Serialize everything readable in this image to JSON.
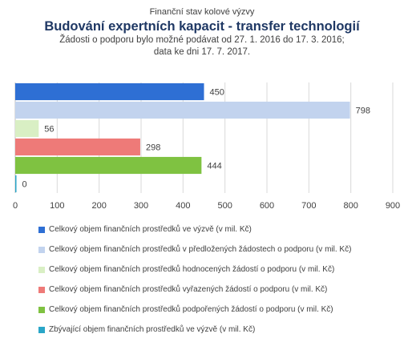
{
  "header": {
    "supertitle": "Finanční stav kolové výzvy",
    "title": "Budování expertních kapacit - transfer technologií",
    "subtitle_line1": "Žádosti o podporu bylo možné  podávat od 27. 1. 2016 do 17. 3. 2016;",
    "subtitle_line2": "data ke dni 17. 7. 2017."
  },
  "chart_data": {
    "type": "bar",
    "orientation": "horizontal",
    "title": "Budování expertních kapacit - transfer technologií",
    "xlim": [
      0,
      900
    ],
    "xticks": [
      "0",
      "100",
      "200",
      "300",
      "400",
      "500",
      "600",
      "700",
      "800",
      "900"
    ],
    "grid": true,
    "legend_position": "bottom",
    "series": [
      {
        "name": "Celkový objem finančních prostředků ve výzvě (v mil. Kč)",
        "value": 450,
        "label": "450",
        "color": "#2e6fd4"
      },
      {
        "name": "Celkový objem finančních prostředků v předložených žádostech o podporu (v mil. Kč)",
        "value": 798,
        "label": "798",
        "color": "#c2d3ee"
      },
      {
        "name": "Celkový objem finančních prostředků hodnocených žádostí o podporu (v mil. Kč)",
        "value": 56,
        "label": "56",
        "color": "#d9efc4"
      },
      {
        "name": "Celkový objem finančních prostředků vyřazených žádostí o podporu (v mil. Kč)",
        "value": 298,
        "label": "298",
        "color": "#ee7a78"
      },
      {
        "name": "Celkový objem finančních prostředků podpořených žádostí o podporu (v mil. Kč)",
        "value": 444,
        "label": "444",
        "color": "#7fc241"
      },
      {
        "name": "Zbývající objem finančních prostředků ve výzvě (v mil. Kč)",
        "value": 0,
        "label": "0",
        "color": "#2aa6c8"
      }
    ]
  }
}
